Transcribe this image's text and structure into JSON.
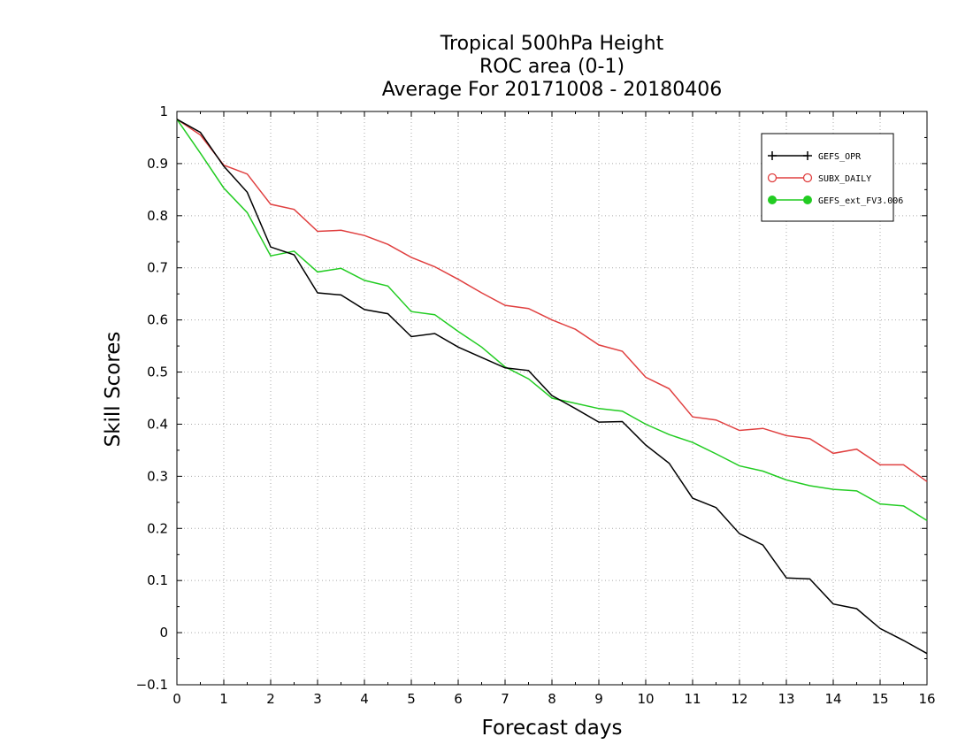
{
  "title_lines": [
    "Tropical 500hPa Height",
    "ROC area (0-1)",
    "Average For 20171008 - 20180406"
  ],
  "chart_data": {
    "type": "line",
    "xlabel": "Forecast days",
    "ylabel": "Skill Scores",
    "xlim": [
      0,
      16
    ],
    "ylim": [
      -0.1,
      1
    ],
    "xticks": [
      "0",
      "1",
      "2",
      "3",
      "4",
      "5",
      "6",
      "7",
      "8",
      "9",
      "10",
      "11",
      "12",
      "13",
      "14",
      "15",
      "16"
    ],
    "yticks": [
      "−0.1",
      "0",
      "0.1",
      "0.2",
      "0.3",
      "0.4",
      "0.5",
      "0.6",
      "0.7",
      "0.8",
      "0.9",
      "1"
    ],
    "grid": true,
    "legend_position": "top-right",
    "x": [
      0,
      0.5,
      1,
      1.5,
      2,
      2.5,
      3,
      3.5,
      4,
      4.5,
      5,
      5.5,
      6,
      6.5,
      7,
      7.5,
      8,
      8.5,
      9,
      9.5,
      10,
      10.5,
      11,
      11.5,
      12,
      12.5,
      13,
      13.5,
      14,
      14.5,
      15,
      15.5,
      16
    ],
    "series": [
      {
        "name": "GEFS_OPR",
        "color": "#000000",
        "marker": "plus",
        "values": [
          0.985,
          0.96,
          0.895,
          0.845,
          0.74,
          0.725,
          0.652,
          0.648,
          0.62,
          0.612,
          0.568,
          0.574,
          0.548,
          0.528,
          0.508,
          0.503,
          0.455,
          0.43,
          0.404,
          0.405,
          0.36,
          0.325,
          0.258,
          0.24,
          0.19,
          0.168,
          0.105,
          0.103,
          0.055,
          0.046,
          0.008,
          -0.015,
          -0.04
        ]
      },
      {
        "name": "SUBX_DAILY",
        "color": "#e04040",
        "marker": "open-circle",
        "values": [
          0.985,
          0.955,
          0.897,
          0.88,
          0.822,
          0.812,
          0.77,
          0.772,
          0.762,
          0.745,
          0.72,
          0.702,
          0.678,
          0.652,
          0.628,
          0.622,
          0.6,
          0.582,
          0.552,
          0.54,
          0.49,
          0.468,
          0.414,
          0.408,
          0.388,
          0.392,
          0.378,
          0.372,
          0.344,
          0.352,
          0.322,
          0.322,
          0.29
        ]
      },
      {
        "name": "GEFS_ext_FV3.006",
        "color": "#22cc22",
        "marker": "filled-circle",
        "values": [
          0.985,
          0.92,
          0.853,
          0.806,
          0.723,
          0.732,
          0.692,
          0.699,
          0.676,
          0.665,
          0.616,
          0.61,
          0.578,
          0.548,
          0.51,
          0.487,
          0.45,
          0.44,
          0.43,
          0.425,
          0.4,
          0.38,
          0.365,
          0.343,
          0.32,
          0.31,
          0.293,
          0.282,
          0.275,
          0.272,
          0.247,
          0.243,
          0.215
        ]
      }
    ]
  }
}
